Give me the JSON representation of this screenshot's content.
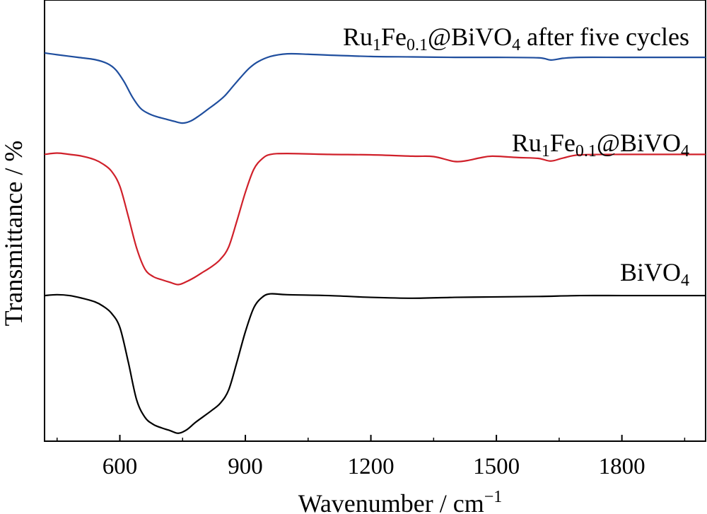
{
  "chart_data": {
    "type": "line",
    "xlabel": "Wavenumber / cm",
    "xlabel_sup": "−1",
    "ylabel": "Transmittance / %",
    "xlim": [
      420,
      2000
    ],
    "ylim": [
      0,
      100
    ],
    "x_ticks": [
      600,
      900,
      1200,
      1500,
      1800
    ],
    "x_tick_labels": [
      "600",
      "900",
      "1200",
      "1500",
      "1800"
    ],
    "y_ticks_visible": false,
    "grid": false,
    "series": [
      {
        "label_parts": [
          {
            "text": "Ru",
            "sub": false
          },
          {
            "text": "1",
            "sub": true
          },
          {
            "text": "Fe",
            "sub": false
          },
          {
            "text": "0.1",
            "sub": true
          },
          {
            "text": "@BiVO",
            "sub": false
          },
          {
            "text": "4",
            "sub": true
          },
          {
            "text": " after five cycles",
            "sub": false
          }
        ],
        "color": "#1f4e9e",
        "x": [
          420,
          450,
          500,
          540,
          570,
          590,
          610,
          630,
          650,
          670,
          690,
          710,
          730,
          750,
          770,
          790,
          810,
          830,
          850,
          870,
          890,
          910,
          930,
          960,
          1000,
          1050,
          1100,
          1200,
          1300,
          1400,
          1500,
          1600,
          1630,
          1660,
          1700,
          1800,
          1900,
          2000
        ],
        "y": [
          88.0,
          87.6,
          87.0,
          86.5,
          85.6,
          84.2,
          81.5,
          78.0,
          75.4,
          74.2,
          73.5,
          73.0,
          72.5,
          72.1,
          72.6,
          73.8,
          75.2,
          76.6,
          78.2,
          80.4,
          82.6,
          84.6,
          86.0,
          87.2,
          87.8,
          87.7,
          87.5,
          87.2,
          87.1,
          87.0,
          87.0,
          86.9,
          86.4,
          86.8,
          87.0,
          87.0,
          87.0,
          87.0
        ]
      },
      {
        "label_parts": [
          {
            "text": "Ru",
            "sub": false
          },
          {
            "text": "1",
            "sub": true
          },
          {
            "text": "Fe",
            "sub": false
          },
          {
            "text": "0.1",
            "sub": true
          },
          {
            "text": "@BiVO",
            "sub": false
          },
          {
            "text": "4",
            "sub": true
          }
        ],
        "color": "#d0202a",
        "x": [
          420,
          450,
          480,
          510,
          540,
          560,
          580,
          600,
          620,
          640,
          660,
          680,
          700,
          720,
          740,
          760,
          780,
          800,
          820,
          840,
          860,
          880,
          900,
          920,
          940,
          960,
          1000,
          1100,
          1200,
          1300,
          1350,
          1400,
          1430,
          1460,
          1490,
          1550,
          1600,
          1630,
          1660,
          1700,
          1800,
          1900,
          2000
        ],
        "y": [
          65.0,
          65.3,
          65.0,
          64.6,
          63.8,
          62.8,
          61.2,
          57.8,
          51.0,
          43.8,
          39.0,
          37.3,
          36.6,
          36.0,
          35.5,
          36.2,
          37.2,
          38.4,
          39.6,
          41.2,
          44.0,
          50.0,
          56.4,
          61.6,
          64.0,
          65.0,
          65.2,
          65.0,
          64.9,
          64.6,
          64.5,
          63.4,
          63.6,
          64.2,
          64.6,
          64.3,
          64.1,
          63.5,
          64.2,
          64.9,
          65.0,
          65.0,
          65.0
        ]
      },
      {
        "label_parts": [
          {
            "text": "BiVO",
            "sub": false
          },
          {
            "text": "4",
            "sub": true
          }
        ],
        "color": "#000000",
        "x": [
          420,
          450,
          480,
          510,
          540,
          560,
          580,
          600,
          620,
          640,
          660,
          680,
          700,
          720,
          740,
          760,
          780,
          800,
          820,
          840,
          860,
          880,
          900,
          920,
          940,
          960,
          1000,
          1100,
          1200,
          1300,
          1400,
          1500,
          1600,
          1700,
          1800,
          1900,
          2000
        ],
        "y": [
          33.0,
          33.2,
          33.0,
          32.4,
          31.6,
          30.6,
          29.0,
          25.8,
          18.0,
          9.4,
          5.4,
          3.8,
          3.0,
          2.4,
          1.8,
          2.6,
          4.2,
          5.6,
          7.0,
          8.6,
          11.6,
          18.0,
          24.8,
          30.2,
          32.6,
          33.4,
          33.2,
          33.0,
          32.6,
          32.4,
          32.6,
          32.7,
          32.8,
          33.0,
          33.0,
          33.0,
          33.0
        ]
      }
    ]
  }
}
